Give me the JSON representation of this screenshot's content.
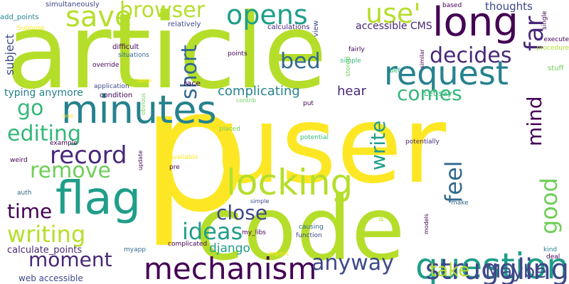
{
  "colors": {
    "background": "#ffffff",
    "palette": [
      "#440154",
      "#482878",
      "#3e4989",
      "#31688e",
      "#26828e",
      "#1f9e89",
      "#35b779",
      "#6ece58",
      "#b5de2b",
      "#fde725"
    ]
  },
  "words": [
    {
      "text": "article",
      "color": "#b5de2b"
    },
    {
      "text": "user",
      "color": "#fde725"
    },
    {
      "text": "p",
      "color": "#fde725"
    },
    {
      "text": "code",
      "color": "#b5de2b"
    },
    {
      "text": "long",
      "color": "#440154"
    },
    {
      "text": "minutes",
      "color": "#26828e"
    },
    {
      "text": "request",
      "color": "#26828e"
    },
    {
      "text": "flag",
      "color": "#1f9e89"
    },
    {
      "text": "locking",
      "color": "#b5de2b"
    },
    {
      "text": "mechanism",
      "color": "#440154"
    },
    {
      "text": "question",
      "color": "#1f9e89"
    },
    {
      "text": "struggling",
      "color": "#3e4989"
    },
    {
      "text": "record",
      "color": "#482878"
    },
    {
      "text": "save",
      "color": "#b5de2b"
    },
    {
      "text": "opens",
      "color": "#1f9e89"
    },
    {
      "text": "use'",
      "color": "#b5de2b"
    },
    {
      "text": "browser",
      "color": "#b5de2b"
    },
    {
      "text": "far",
      "color": "#482878"
    },
    {
      "text": "decides",
      "color": "#482878"
    },
    {
      "text": "bed",
      "color": "#31688e"
    },
    {
      "text": "short",
      "color": "#31688e"
    },
    {
      "text": "comes",
      "color": "#35b779"
    },
    {
      "text": "editing",
      "color": "#35b779"
    },
    {
      "text": "remove",
      "color": "#6ece58"
    },
    {
      "text": "go",
      "color": "#35b779"
    },
    {
      "text": "write",
      "color": "#1f9e89"
    },
    {
      "text": "feel",
      "color": "#31688e"
    },
    {
      "text": "mind",
      "color": "#440154"
    },
    {
      "text": "good",
      "color": "#6ece58"
    },
    {
      "text": "time",
      "color": "#440154"
    },
    {
      "text": "close",
      "color": "#3e4989"
    },
    {
      "text": "ideas",
      "color": "#1f9e89"
    },
    {
      "text": "writing",
      "color": "#b5de2b"
    },
    {
      "text": "moment",
      "color": "#482878"
    },
    {
      "text": "anyway",
      "color": "#3e4989"
    },
    {
      "text": "take",
      "color": "#b5de2b"
    },
    {
      "text": "Maybe",
      "color": "#3e4989"
    },
    {
      "text": "thoughts",
      "color": "#3e4989"
    },
    {
      "text": "accessible CMS",
      "color": "#482878"
    },
    {
      "text": "hear",
      "color": "#482878"
    },
    {
      "text": "complicating",
      "color": "#26828e"
    },
    {
      "text": "typing anymore",
      "color": "#26828e"
    },
    {
      "text": "subject",
      "color": "#3e4989"
    },
    {
      "text": "django",
      "color": "#1f9e89"
    },
    {
      "text": "calculate_points",
      "color": "#482878"
    },
    {
      "text": "web accessible",
      "color": "#3e4989"
    },
    {
      "text": "Let say",
      "color": "#35b779"
    },
    {
      "text": "simultaneously",
      "color": "#3e4989"
    },
    {
      "text": "add_points",
      "color": "#26828e"
    },
    {
      "text": "Suppose",
      "color": "#fde725"
    },
    {
      "text": "relatively",
      "color": "#3e4989"
    },
    {
      "text": "calculations",
      "color": "#482878"
    },
    {
      "text": "difficult",
      "color": "#440154"
    },
    {
      "text": "situations",
      "color": "#31688e"
    },
    {
      "text": "override",
      "color": "#440154"
    },
    {
      "text": "application",
      "color": "#3e4989"
    },
    {
      "text": "race",
      "color": "#440154"
    },
    {
      "text": "condition",
      "color": "#440154"
    },
    {
      "text": "twice",
      "color": "#fde725"
    },
    {
      "text": "points",
      "color": "#440154"
    },
    {
      "text": "view",
      "color": "#3e4989"
    },
    {
      "text": "stored",
      "color": "#6ece58"
    },
    {
      "text": "fairly",
      "color": "#440154"
    },
    {
      "text": "simple",
      "color": "#35b779"
    },
    {
      "text": "def",
      "color": "#35b779"
    },
    {
      "text": "put",
      "color": "#440154"
    },
    {
      "text": "contrib",
      "color": "#6ece58"
    },
    {
      "text": "obvious",
      "color": "#6ece58"
    },
    {
      "text": "placed",
      "color": "#6ece58"
    },
    {
      "text": "potential",
      "color": "#35b779"
    },
    {
      "text": "potentially",
      "color": "#482878"
    },
    {
      "text": "example",
      "color": "#440154"
    },
    {
      "text": "weird",
      "color": "#440154"
    },
    {
      "text": "update",
      "color": "#440154"
    },
    {
      "text": "available",
      "color": "#fde725"
    },
    {
      "text": "pre",
      "color": "#440154"
    },
    {
      "text": "auth",
      "color": "#31688e"
    },
    {
      "text": "simple",
      "color": "#3e4989"
    },
    {
      "text": "make",
      "color": "#31688e"
    },
    {
      "text": "my_libs",
      "color": "#440154"
    },
    {
      "text": "complicated",
      "color": "#440154"
    },
    {
      "text": "myapp",
      "color": "#31688e"
    },
    {
      "text": "import",
      "color": "#fde725"
    },
    {
      "text": "causing",
      "color": "#31688e"
    },
    {
      "text": "function",
      "color": "#3e4989"
    },
    {
      "text": "py",
      "color": "#b5de2b"
    },
    {
      "text": "kind",
      "color": "#26828e"
    },
    {
      "text": "deal",
      "color": "#440154"
    },
    {
      "text": "stuff",
      "color": "#6ece58"
    },
    {
      "text": "procedure",
      "color": "#b5de2b"
    },
    {
      "text": "execute",
      "color": "#440154"
    },
    {
      "text": "single",
      "color": "#440154"
    },
    {
      "text": "based",
      "color": "#440154"
    },
    {
      "text": "models",
      "color": "#440154"
    },
    {
      "text": "similar",
      "color": "#440154"
    },
    {
      "text": "one",
      "color": "#fde725"
    }
  ]
}
